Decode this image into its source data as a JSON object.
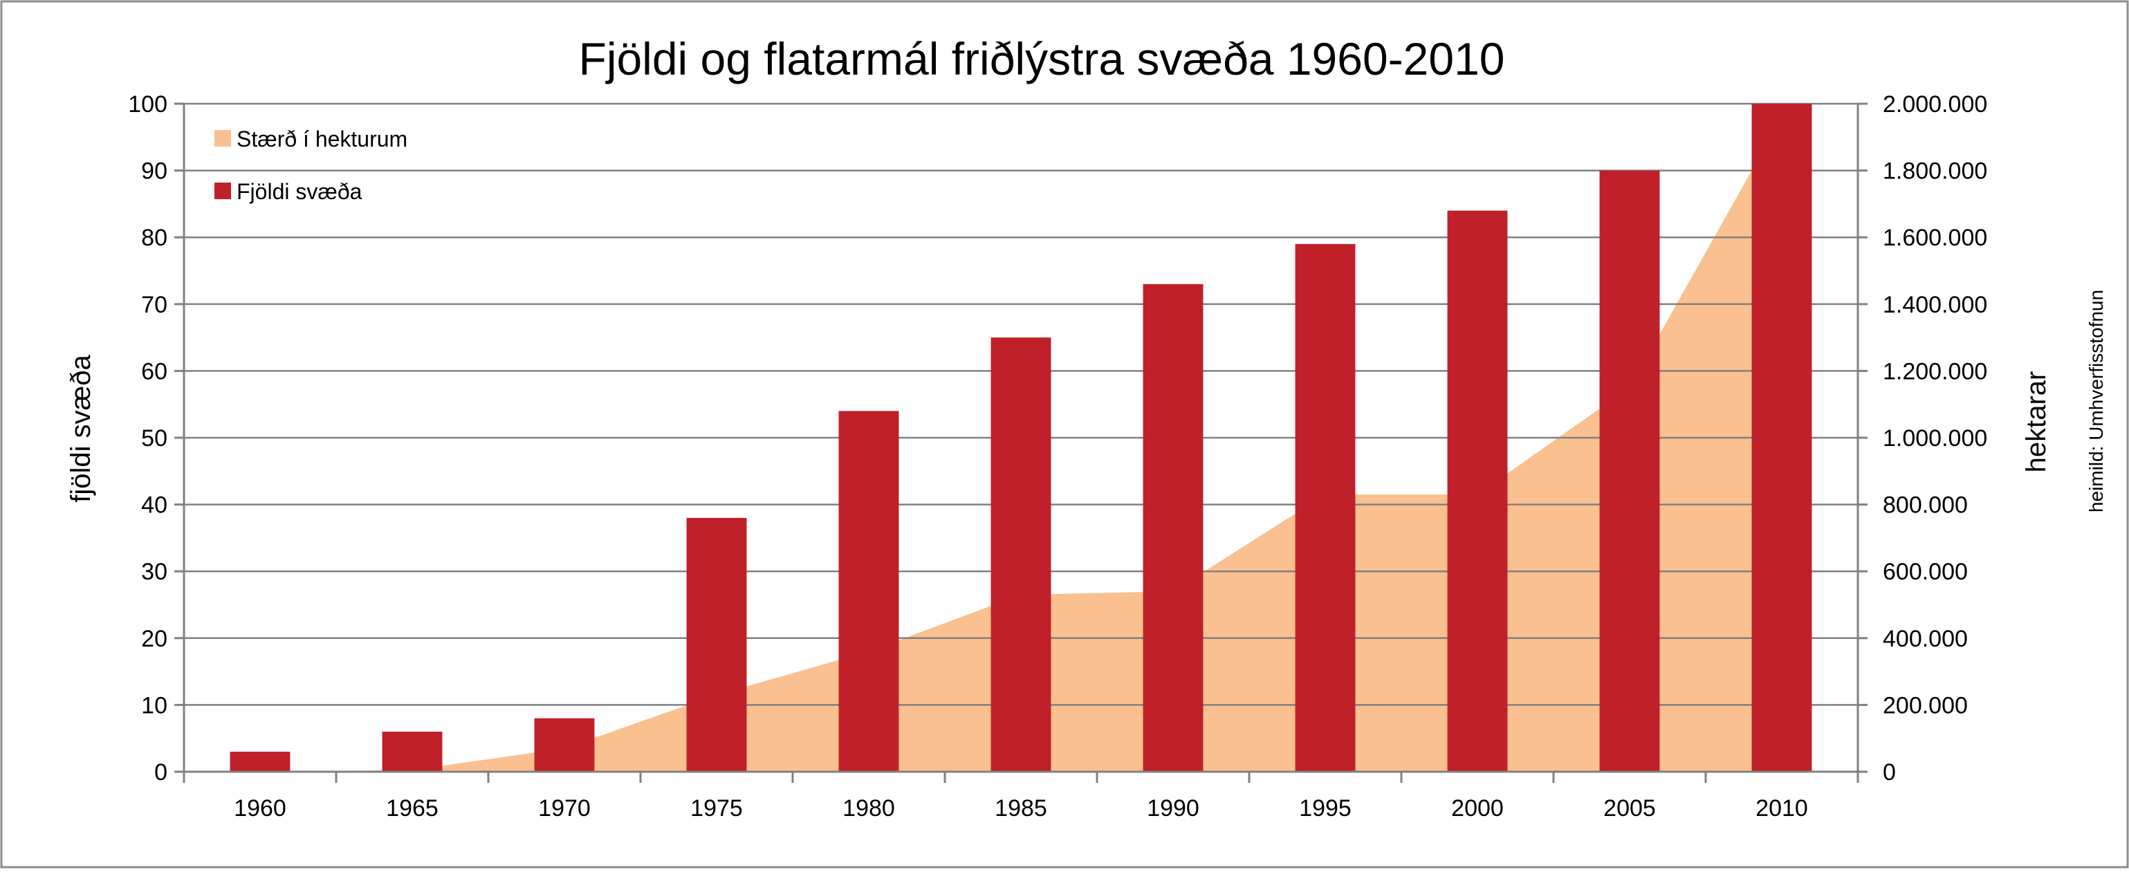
{
  "chart_data": {
    "type": "bar",
    "title": "Fjöldi og flatarmál friðlýstra svæða 1960-2010",
    "source_note": "heimild: Umhverfisstofnun",
    "categories": [
      "1960",
      "1965",
      "1970",
      "1975",
      "1980",
      "1985",
      "1990",
      "1995",
      "2000",
      "2005",
      "2010"
    ],
    "series": [
      {
        "name": "Stærð í hekturum",
        "type": "area",
        "axis": "right",
        "color": "#FAC090",
        "values": [
          0,
          5000,
          70000,
          230000,
          360000,
          530000,
          540000,
          830000,
          830000,
          1150000,
          1960000
        ]
      },
      {
        "name": "Fjöldi svæða",
        "type": "bar",
        "axis": "left",
        "color": "#C0202A",
        "values": [
          3,
          6,
          8,
          38,
          54,
          65,
          73,
          79,
          84,
          90,
          100
        ]
      }
    ],
    "ylabel_left": "fjöldi svæða",
    "ylabel_right": "hektarar",
    "ylim_left": [
      0,
      100
    ],
    "ylim_right": [
      0,
      2000000
    ],
    "yticks_left": [
      "0",
      "10",
      "20",
      "30",
      "40",
      "50",
      "60",
      "70",
      "80",
      "90",
      "100"
    ],
    "yticks_right": [
      "0",
      "200.000",
      "400.000",
      "600.000",
      "800.000",
      "1.000.000",
      "1.200.000",
      "1.400.000",
      "1.600.000",
      "1.800.000",
      "2.000.000"
    ],
    "grid": true,
    "gridline_color": "#808080",
    "legend_position": "top-left"
  }
}
